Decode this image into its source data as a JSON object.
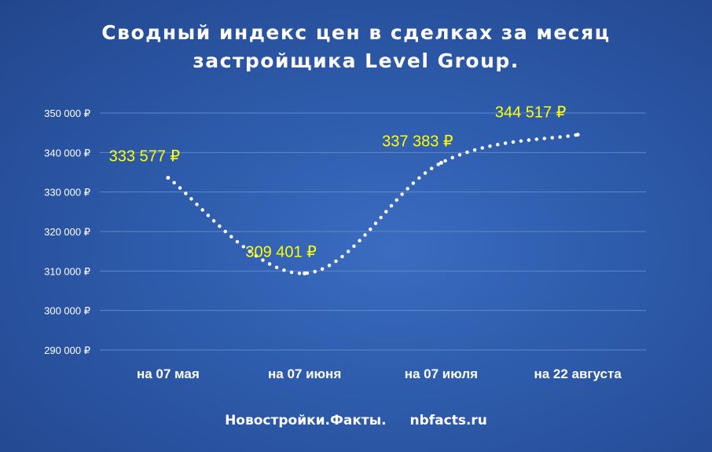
{
  "title_line1": "Сводный  индекс цен в сделках за месяц",
  "title_line2": "застройщика Level Group.",
  "footer": {
    "brand": "Новостройки.Факты.",
    "site": "nbfacts.ru"
  },
  "colors": {
    "line": "#ffffff",
    "data_label": "#ffff00",
    "gridline": "#5f86c8"
  },
  "chart_data": {
    "type": "line",
    "title": "Сводный  индекс цен в сделках за месяц застройщика Level Group.",
    "categories": [
      "на 07 мая",
      "на 07 июня",
      "на 07 июля",
      "на 22 августа"
    ],
    "values": [
      333577,
      309401,
      337383,
      344517
    ],
    "data_labels": [
      "333 577 ₽",
      "309 401 ₽",
      "337 383 ₽",
      "344 517 ₽"
    ],
    "ylim": [
      290000,
      350000
    ],
    "yticks": [
      290000,
      300000,
      310000,
      320000,
      330000,
      340000,
      350000
    ],
    "ytick_labels": [
      "290 000 ₽",
      "300 000 ₽",
      "310 000 ₽",
      "320 000 ₽",
      "330 000 ₽",
      "340 000 ₽",
      "350 000 ₽"
    ],
    "line_style": "dotted",
    "grid": true,
    "legend": "none"
  }
}
